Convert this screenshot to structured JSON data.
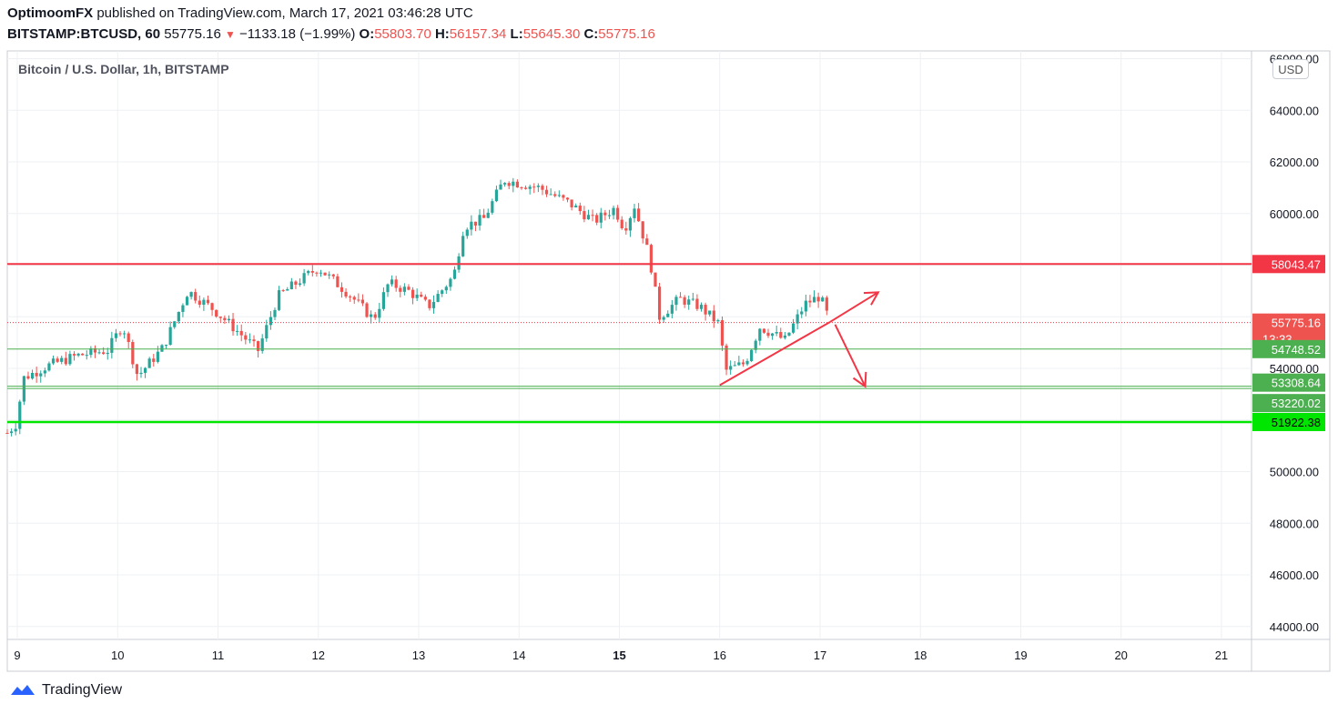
{
  "header": {
    "author": "OptimoomFX",
    "published_text": " published on TradingView.com, March 17, 2021 03:46:28 UTC",
    "symbol": "BITSTAMP:BTCUSD, 60",
    "last": "55775.16",
    "change": "−1133.18 (−1.99%)",
    "o_label": "O:",
    "o_value": "55803.70",
    "h_label": "H:",
    "h_value": "56157.34",
    "l_label": "L:",
    "l_value": "55645.30",
    "c_label": "C:",
    "c_value": "55775.16"
  },
  "chart_title": "Bitcoin / U.S. Dollar, 1h, BITSTAMP",
  "currency_button": "USD",
  "countdown": "13:33",
  "footer_brand": "TradingView",
  "colors": {
    "up": "#26a69a",
    "down": "#ef5350",
    "resistance": "#f23645",
    "support_thin": "#4caf50",
    "support_strong": "#00e600",
    "grid": "#eef0f3",
    "axis_text": "#131722"
  },
  "chart_data": {
    "type": "candlestick",
    "title": "Bitcoin / U.S. Dollar, 1h, BITSTAMP",
    "x_ticks": [
      "9",
      "10",
      "11",
      "12",
      "13",
      "14",
      "15",
      "16",
      "17",
      "18",
      "19",
      "20",
      "21"
    ],
    "y_ticks": [
      "44000.00",
      "46000.00",
      "48000.00",
      "50000.00",
      "60000.00",
      "62000.00",
      "64000.00"
    ],
    "x_range": [
      8.9,
      21.3
    ],
    "y_range": [
      43500,
      66300
    ],
    "series_close_path": [
      {
        "day": 8.9,
        "price": 51500
      },
      {
        "day": 9.0,
        "price": 51900
      },
      {
        "day": 9.05,
        "price": 53600
      },
      {
        "day": 9.3,
        "price": 54100
      },
      {
        "day": 9.6,
        "price": 54500
      },
      {
        "day": 9.9,
        "price": 54700
      },
      {
        "day": 10.05,
        "price": 55700
      },
      {
        "day": 10.2,
        "price": 53700
      },
      {
        "day": 10.45,
        "price": 54800
      },
      {
        "day": 10.7,
        "price": 57000
      },
      {
        "day": 10.95,
        "price": 56300
      },
      {
        "day": 11.15,
        "price": 55600
      },
      {
        "day": 11.4,
        "price": 54700
      },
      {
        "day": 11.6,
        "price": 56800
      },
      {
        "day": 11.85,
        "price": 57500
      },
      {
        "day": 12.0,
        "price": 57900
      },
      {
        "day": 12.3,
        "price": 56900
      },
      {
        "day": 12.55,
        "price": 55900
      },
      {
        "day": 12.7,
        "price": 57300
      },
      {
        "day": 12.9,
        "price": 57000
      },
      {
        "day": 13.1,
        "price": 56400
      },
      {
        "day": 13.35,
        "price": 57600
      },
      {
        "day": 13.45,
        "price": 59500
      },
      {
        "day": 13.65,
        "price": 59800
      },
      {
        "day": 13.85,
        "price": 61300
      },
      {
        "day": 14.2,
        "price": 61000
      },
      {
        "day": 14.5,
        "price": 60400
      },
      {
        "day": 14.75,
        "price": 59700
      },
      {
        "day": 14.95,
        "price": 60200
      },
      {
        "day": 15.05,
        "price": 59400
      },
      {
        "day": 15.15,
        "price": 60300
      },
      {
        "day": 15.3,
        "price": 58300
      },
      {
        "day": 15.4,
        "price": 56000
      },
      {
        "day": 15.6,
        "price": 56700
      },
      {
        "day": 15.8,
        "price": 56400
      },
      {
        "day": 16.0,
        "price": 55700
      },
      {
        "day": 16.05,
        "price": 53900
      },
      {
        "day": 16.25,
        "price": 54200
      },
      {
        "day": 16.4,
        "price": 55600
      },
      {
        "day": 16.65,
        "price": 55100
      },
      {
        "day": 16.85,
        "price": 56500
      },
      {
        "day": 17.0,
        "price": 56800
      },
      {
        "day": 17.1,
        "price": 55775
      }
    ],
    "price_lines": [
      {
        "label": "58043.47",
        "price": 58043.47,
        "role": "resistance"
      },
      {
        "label": "55775.16",
        "price": 55775.16,
        "role": "last"
      },
      {
        "label": "54748.52",
        "price": 54748.52,
        "role": "support"
      },
      {
        "label": "53308.64",
        "price": 53308.64,
        "role": "support"
      },
      {
        "label": "53220.02",
        "price": 53220.02,
        "role": "support"
      },
      {
        "label": "51922.38",
        "price": 51922.38,
        "role": "strong-support"
      }
    ],
    "trend_line": {
      "from": {
        "day": 16.0,
        "price": 53350
      },
      "to": {
        "day": 17.1,
        "price": 55800
      }
    },
    "arrow_up": {
      "from": {
        "day": 17.1,
        "price": 55800
      },
      "to": {
        "day": 17.58,
        "price": 56950
      }
    },
    "arrow_down": {
      "from": {
        "day": 17.15,
        "price": 55700
      },
      "to": {
        "day": 17.45,
        "price": 53300
      }
    }
  }
}
